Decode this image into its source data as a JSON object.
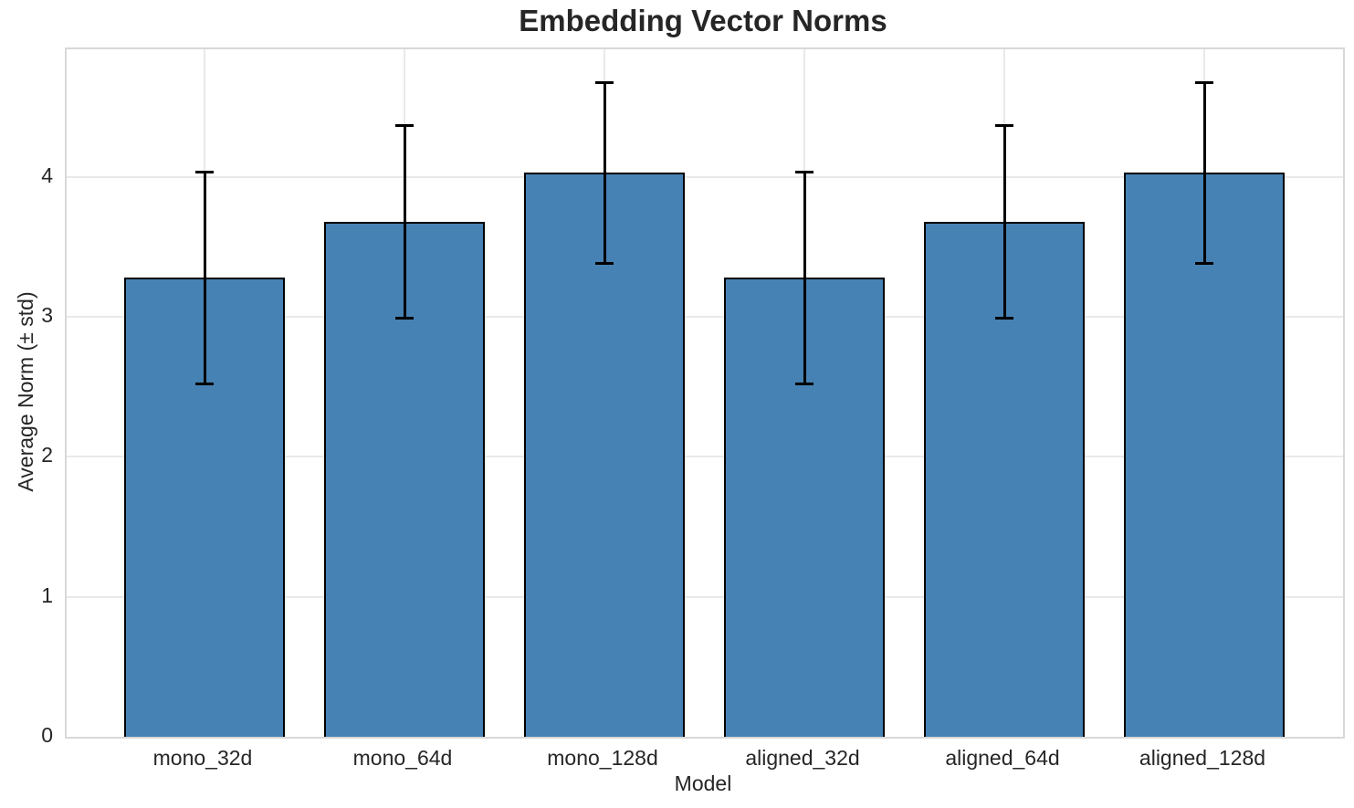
{
  "chart_data": {
    "type": "bar",
    "title": "Embedding Vector Norms",
    "xlabel": "Model",
    "ylabel": "Average Norm (± std)",
    "categories": [
      "mono_32d",
      "mono_64d",
      "mono_128d",
      "aligned_32d",
      "aligned_64d",
      "aligned_128d"
    ],
    "values": [
      3.28,
      3.68,
      4.03,
      3.28,
      3.68,
      4.03
    ],
    "errors": [
      0.76,
      0.69,
      0.65,
      0.76,
      0.69,
      0.65
    ],
    "error_style": "plus-minus std with caps",
    "yticks": [
      0,
      1,
      2,
      3,
      4
    ],
    "ylim": [
      0,
      4.913
    ],
    "grid": true,
    "grid_orientation": "horizontal and vertical",
    "legend": "none",
    "bar_color": "#4682b4",
    "bar_edge_color": "#000000",
    "error_color": "#000000",
    "grid_color": "#e9e9e9",
    "spine_color": "#d8d8d8",
    "text_color": "#262626"
  }
}
